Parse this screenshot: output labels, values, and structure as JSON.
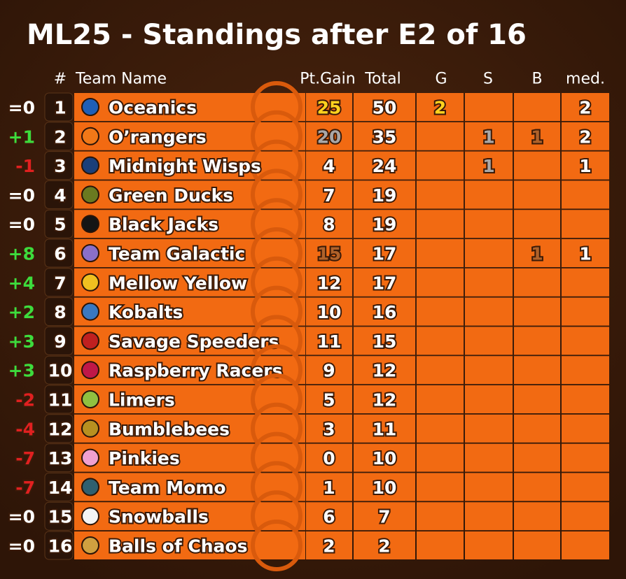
{
  "title": "ML25 - Standings after E2 of 16",
  "header": {
    "rank": "#",
    "team": "Team Name",
    "pt_gain": "Pt.Gain",
    "total": "Total",
    "gold": "G",
    "silver": "S",
    "bronze": "B",
    "medals": "med."
  },
  "rows": [
    {
      "change": "=0",
      "rank": 1,
      "team": "Oceanics",
      "pt_gain": 25,
      "total": 50,
      "gold": 2,
      "silver": null,
      "bronze": null,
      "medals": 2
    },
    {
      "change": "+1",
      "rank": 2,
      "team": "O’rangers",
      "pt_gain": 20,
      "total": 35,
      "gold": null,
      "silver": 1,
      "bronze": 1,
      "medals": 2
    },
    {
      "change": "-1",
      "rank": 3,
      "team": "Midnight Wisps",
      "pt_gain": 4,
      "total": 24,
      "gold": null,
      "silver": 1,
      "bronze": null,
      "medals": 1
    },
    {
      "change": "=0",
      "rank": 4,
      "team": "Green Ducks",
      "pt_gain": 7,
      "total": 19,
      "gold": null,
      "silver": null,
      "bronze": null,
      "medals": null
    },
    {
      "change": "=0",
      "rank": 5,
      "team": "Black Jacks",
      "pt_gain": 8,
      "total": 19,
      "gold": null,
      "silver": null,
      "bronze": null,
      "medals": null
    },
    {
      "change": "+8",
      "rank": 6,
      "team": "Team Galactic",
      "pt_gain": 15,
      "total": 17,
      "gold": null,
      "silver": null,
      "bronze": 1,
      "medals": 1
    },
    {
      "change": "+4",
      "rank": 7,
      "team": "Mellow Yellow",
      "pt_gain": 12,
      "total": 17,
      "gold": null,
      "silver": null,
      "bronze": null,
      "medals": null
    },
    {
      "change": "+2",
      "rank": 8,
      "team": "Kobalts",
      "pt_gain": 10,
      "total": 16,
      "gold": null,
      "silver": null,
      "bronze": null,
      "medals": null
    },
    {
      "change": "+3",
      "rank": 9,
      "team": "Savage Speeders",
      "pt_gain": 11,
      "total": 15,
      "gold": null,
      "silver": null,
      "bronze": null,
      "medals": null
    },
    {
      "change": "+3",
      "rank": 10,
      "team": "Raspberry Racers",
      "pt_gain": 9,
      "total": 12,
      "gold": null,
      "silver": null,
      "bronze": null,
      "medals": null
    },
    {
      "change": "-2",
      "rank": 11,
      "team": "Limers",
      "pt_gain": 5,
      "total": 12,
      "gold": null,
      "silver": null,
      "bronze": null,
      "medals": null
    },
    {
      "change": "-4",
      "rank": 12,
      "team": "Bumblebees",
      "pt_gain": 3,
      "total": 11,
      "gold": null,
      "silver": null,
      "bronze": null,
      "medals": null
    },
    {
      "change": "-7",
      "rank": 13,
      "team": "Pinkies",
      "pt_gain": 0,
      "total": 10,
      "gold": null,
      "silver": null,
      "bronze": null,
      "medals": null
    },
    {
      "change": "-7",
      "rank": 14,
      "team": "Team Momo",
      "pt_gain": 1,
      "total": 10,
      "gold": null,
      "silver": null,
      "bronze": null,
      "medals": null
    },
    {
      "change": "=0",
      "rank": 15,
      "team": "Snowballs",
      "pt_gain": 6,
      "total": 7,
      "gold": null,
      "silver": null,
      "bronze": null,
      "medals": null
    },
    {
      "change": "=0",
      "rank": 16,
      "team": "Balls of Chaos",
      "pt_gain": 2,
      "total": 2,
      "gold": null,
      "silver": null,
      "bronze": null,
      "medals": null
    }
  ]
}
